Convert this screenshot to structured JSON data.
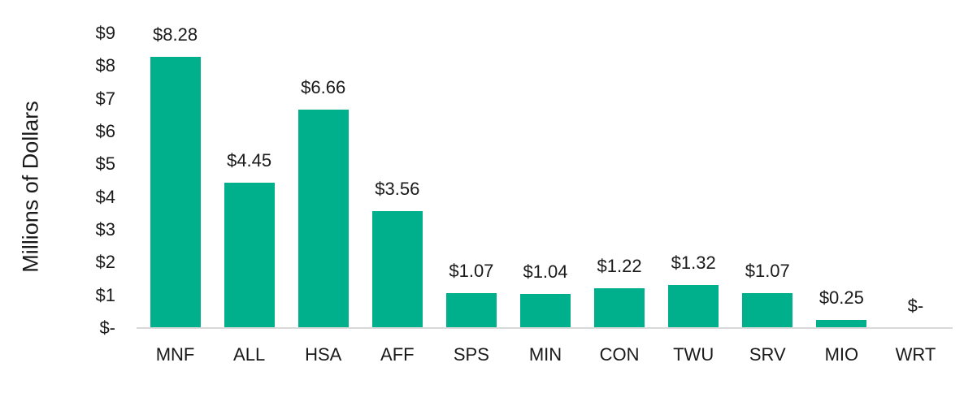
{
  "chart_data": {
    "type": "bar",
    "title": "",
    "xlabel": "",
    "ylabel": "Millions of Dollars",
    "categories": [
      "MNF",
      "ALL",
      "HSA",
      "AFF",
      "SPS",
      "MIN",
      "CON",
      "TWU",
      "SRV",
      "MIO",
      "WRT"
    ],
    "values": [
      8.28,
      4.45,
      6.66,
      3.56,
      1.07,
      1.04,
      1.22,
      1.32,
      1.07,
      0.25,
      0
    ],
    "data_labels": [
      "$8.28",
      "$4.45",
      "$6.66",
      "$3.56",
      "$1.07",
      "$1.04",
      "$1.22",
      "$1.32",
      "$1.07",
      "$0.25",
      "$-"
    ],
    "y_ticks": [
      {
        "label": "$-",
        "value": 0
      },
      {
        "label": "$1",
        "value": 1
      },
      {
        "label": "$2",
        "value": 2
      },
      {
        "label": "$3",
        "value": 3
      },
      {
        "label": "$4",
        "value": 4
      },
      {
        "label": "$5",
        "value": 5
      },
      {
        "label": "$6",
        "value": 6
      },
      {
        "label": "$7",
        "value": 7
      },
      {
        "label": "$8",
        "value": 8
      },
      {
        "label": "$9",
        "value": 9
      }
    ],
    "ylim": [
      0,
      9
    ],
    "grid": false,
    "legend": false,
    "bar_color": "#00B08D",
    "axis_line_color": "#D9D9D9",
    "text_color": "#1A1A1A",
    "background_color": "#FFFFFF"
  }
}
